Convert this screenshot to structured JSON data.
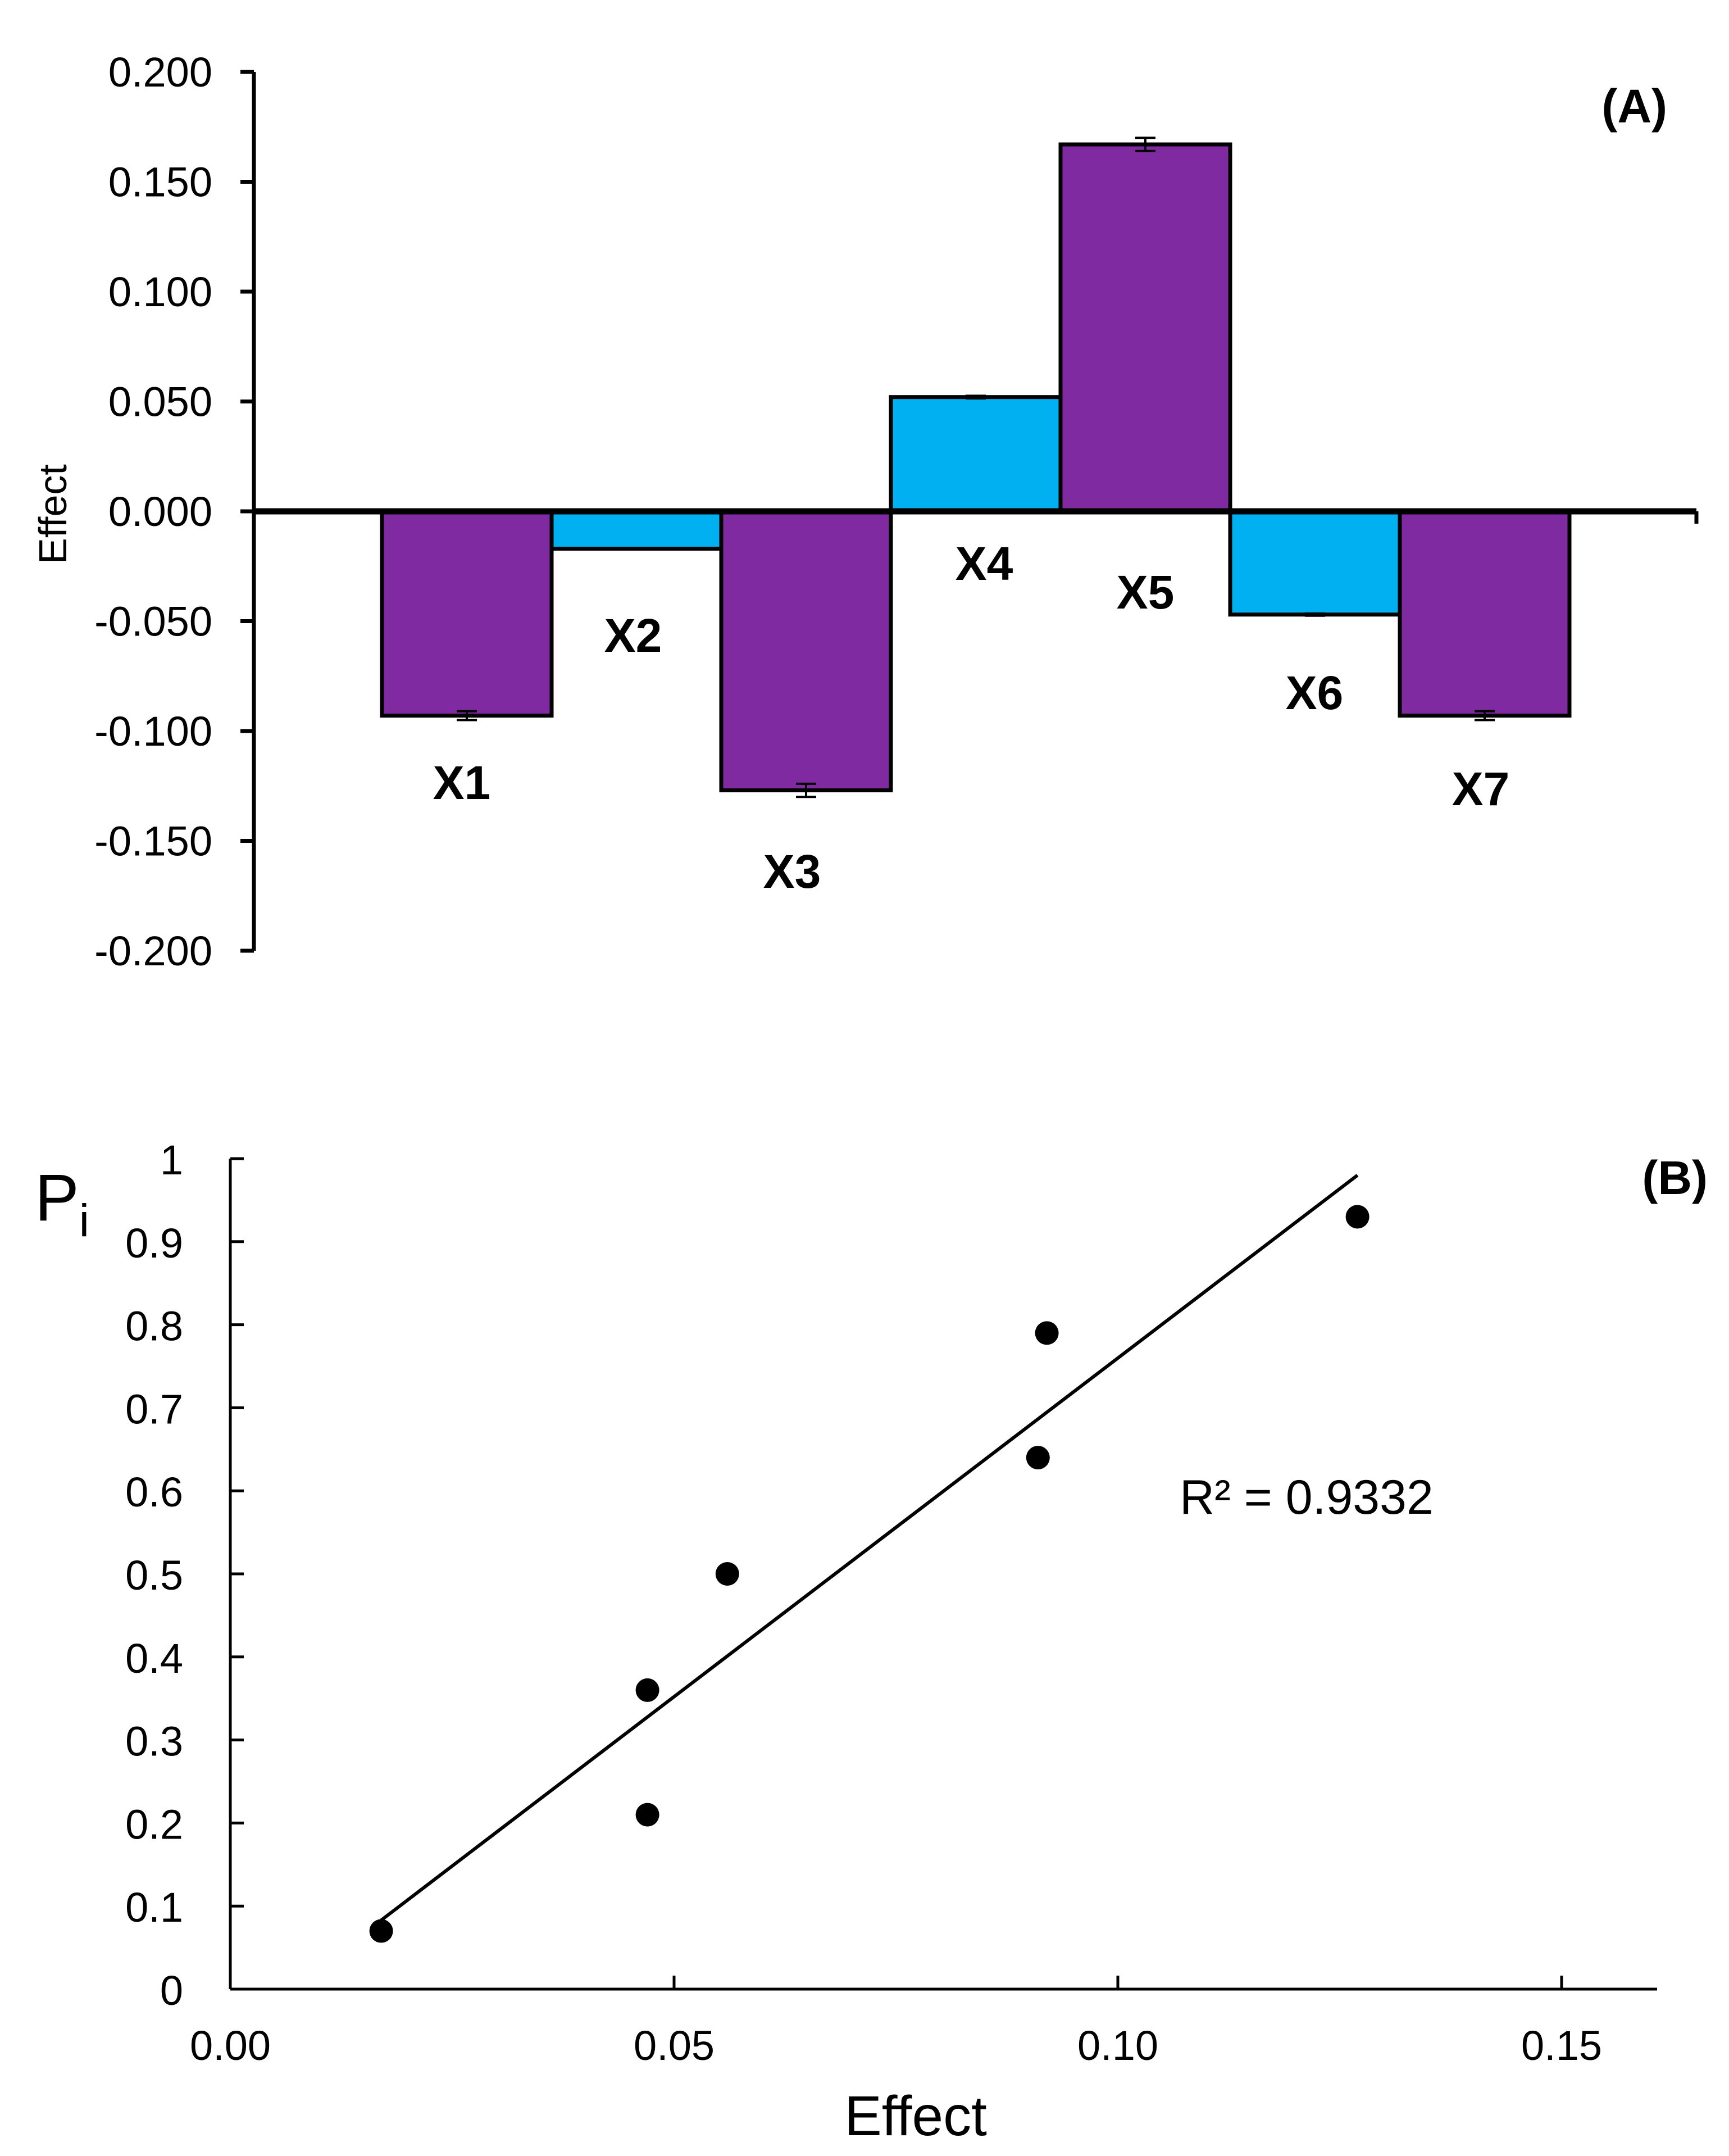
{
  "chart_data": [
    {
      "panel": "A",
      "type": "bar",
      "panel_label": "(A)",
      "ylabel": "Effect",
      "xlabel": "",
      "ylim": [
        -0.2,
        0.2
      ],
      "yticks": [
        0.2,
        0.15,
        0.1,
        0.05,
        0.0,
        -0.05,
        -0.1,
        -0.15,
        -0.2
      ],
      "ytick_labels": [
        "0.200",
        "0.150",
        "0.100",
        "0.050",
        "0.000",
        "-0.050",
        "-0.100",
        "-0.150",
        "-0.200"
      ],
      "categories": [
        "X1",
        "X2",
        "X3",
        "X4",
        "X5",
        "X6",
        "X7"
      ],
      "values": [
        -0.093,
        -0.017,
        -0.127,
        0.052,
        0.167,
        -0.047,
        -0.093
      ],
      "errors": [
        0.002,
        0.0003,
        0.003,
        0.0006,
        0.003,
        0.0005,
        0.002
      ],
      "colors": [
        "#7F2AA1",
        "#00B0F0",
        "#7F2AA1",
        "#00B0F0",
        "#7F2AA1",
        "#00B0F0",
        "#7F2AA1"
      ],
      "grid": false
    },
    {
      "panel": "B",
      "type": "scatter",
      "panel_label": "(B)",
      "ylabel_main": "P",
      "ylabel_sub": "i",
      "xlabel": "Effect",
      "xlim": [
        0.0,
        0.16
      ],
      "ylim": [
        0,
        1
      ],
      "xticks": [
        0.0,
        0.05,
        0.1,
        0.15
      ],
      "xtick_labels": [
        "0.00",
        "0.05",
        "0.10",
        "0.15"
      ],
      "yticks": [
        0,
        0.1,
        0.2,
        0.3,
        0.4,
        0.5,
        0.6,
        0.7,
        0.8,
        0.9,
        1
      ],
      "ytick_labels": [
        "0",
        "0.1",
        "0.2",
        "0.3",
        "0.4",
        "0.5",
        "0.6",
        "0.7",
        "0.8",
        "0.9",
        "1"
      ],
      "points": [
        {
          "x": 0.017,
          "y": 0.07
        },
        {
          "x": 0.047,
          "y": 0.21
        },
        {
          "x": 0.047,
          "y": 0.36
        },
        {
          "x": 0.056,
          "y": 0.5
        },
        {
          "x": 0.091,
          "y": 0.64
        },
        {
          "x": 0.092,
          "y": 0.79
        },
        {
          "x": 0.127,
          "y": 0.93
        }
      ],
      "trendline": {
        "x": [
          0.017,
          0.127
        ],
        "y": [
          0.083,
          0.98
        ]
      },
      "annotation": "R² = 0.9332",
      "grid": false
    }
  ]
}
